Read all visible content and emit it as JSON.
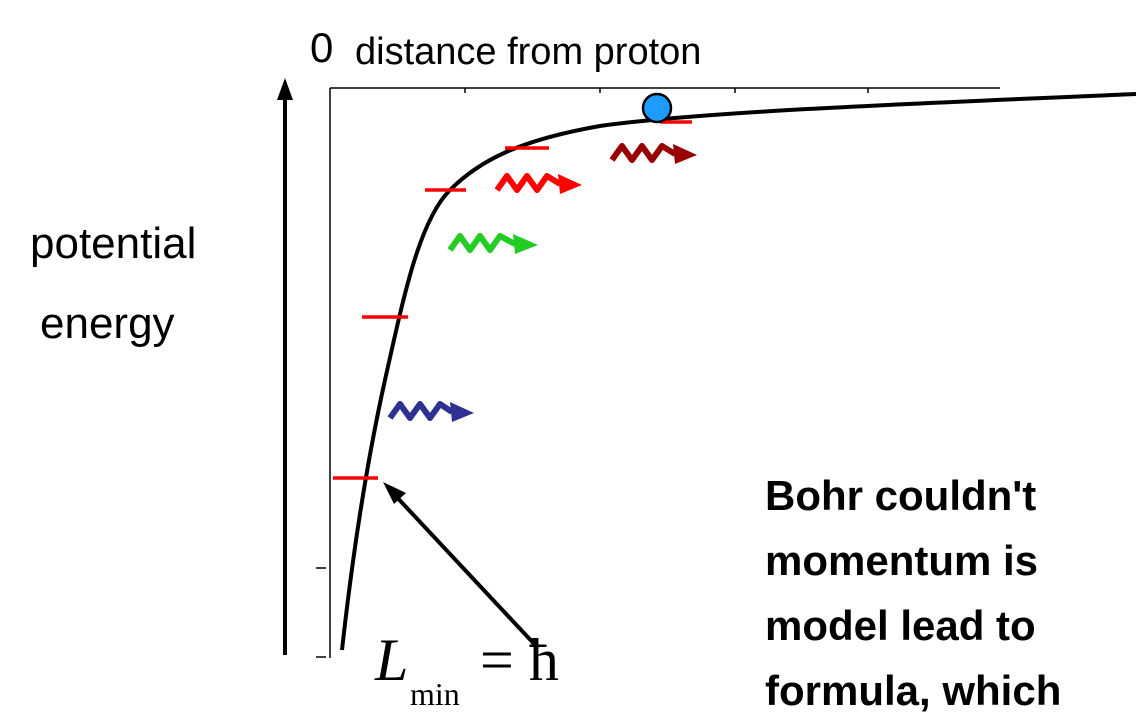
{
  "axis": {
    "origin_label": "0",
    "x_label": "distance from proton",
    "y_label_lines": [
      "potential",
      "energy"
    ]
  },
  "annotation": {
    "symbol": "L",
    "subscript": "min",
    "equals": "= ħ"
  },
  "text_lines": [
    "Bohr couldn't",
    "momentum is",
    "model lead to",
    "formula, which"
  ]
}
